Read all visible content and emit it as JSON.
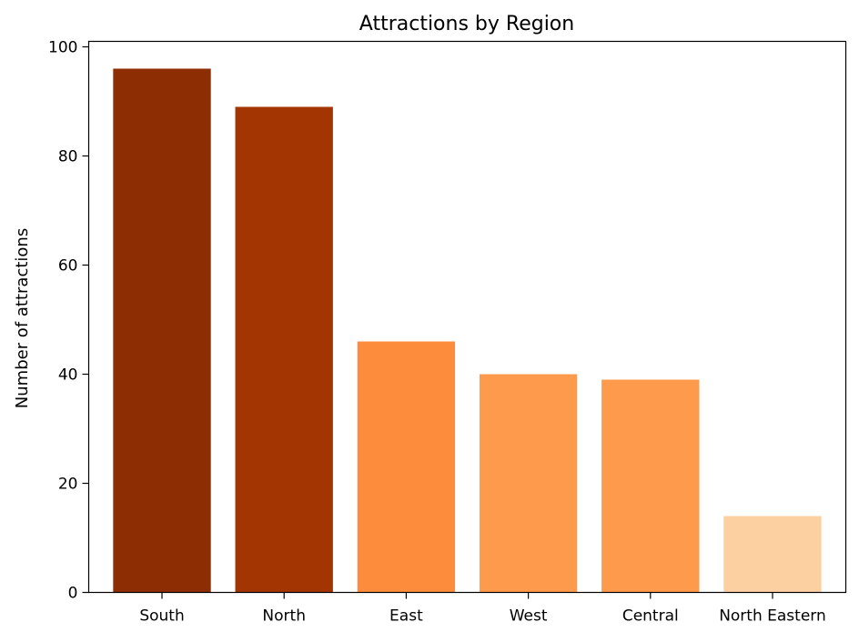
{
  "chart_data": {
    "type": "bar",
    "title": "Attractions by Region",
    "xlabel": "",
    "ylabel": "Number of attractions",
    "categories": [
      "South",
      "North",
      "East",
      "West",
      "Central",
      "North Eastern"
    ],
    "values": [
      96,
      89,
      46,
      40,
      39,
      14
    ],
    "colors": [
      "#8c2d04",
      "#a33503",
      "#fd8d3c",
      "#fd9a4c",
      "#fd9a4c",
      "#fdd0a2"
    ],
    "ylim": [
      0,
      101
    ],
    "yticks": [
      0,
      20,
      40,
      60,
      80,
      100
    ],
    "grid": false,
    "legend": "none"
  }
}
